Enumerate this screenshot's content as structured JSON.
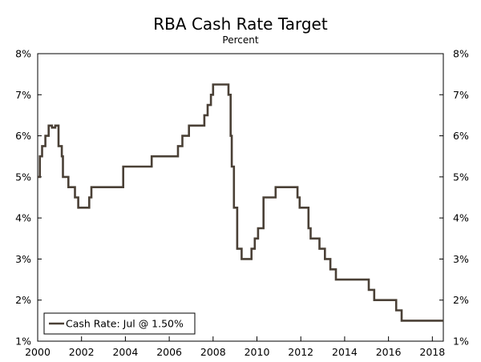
{
  "chart_data": {
    "type": "line",
    "title": "RBA Cash Rate Target",
    "subtitle": "Percent",
    "xlabel": "",
    "ylabel": "",
    "xlim": [
      2000,
      2018.5
    ],
    "ylim": [
      1,
      8
    ],
    "x_ticks": [
      2000,
      2002,
      2004,
      2006,
      2008,
      2010,
      2012,
      2014,
      2016,
      2018
    ],
    "x_tick_labels": [
      "2000",
      "2002",
      "2004",
      "2006",
      "2008",
      "2010",
      "2012",
      "2014",
      "2016",
      "2018"
    ],
    "y_ticks": [
      1,
      2,
      3,
      4,
      5,
      6,
      7,
      8
    ],
    "y_tick_labels_left": [
      "1%",
      "2%",
      "3%",
      "4%",
      "5%",
      "6%",
      "7%",
      "8%"
    ],
    "y_tick_labels_right": [
      "1%",
      "2%",
      "3%",
      "4%",
      "5%",
      "6%",
      "7%",
      "8%"
    ],
    "grid": false,
    "legend_position": "bottom-left",
    "line_color": "#4a4036",
    "series": [
      {
        "name": "Cash Rate: Jul @ 1.50%",
        "step": true,
        "x": [
          2000.0,
          2000.1,
          2000.2,
          2000.35,
          2000.5,
          2000.65,
          2000.8,
          2000.95,
          2001.1,
          2001.15,
          2001.25,
          2001.4,
          2001.7,
          2001.78,
          2001.85,
          2001.95,
          2002.1,
          2002.35,
          2002.45,
          2003.9,
          2005.2,
          2006.4,
          2006.6,
          2006.9,
          2007.6,
          2007.75,
          2007.9,
          2008.0,
          2008.7,
          2008.8,
          2008.85,
          2008.95,
          2009.1,
          2009.3,
          2009.75,
          2009.9,
          2010.05,
          2010.3,
          2010.85,
          2011.85,
          2011.95,
          2012.35,
          2012.45,
          2012.65,
          2012.85,
          2013.1,
          2013.35,
          2013.6,
          2015.1,
          2015.35,
          2016.35,
          2016.6,
          2018.5
        ],
        "values": [
          5.0,
          5.5,
          5.75,
          6.0,
          6.25,
          6.2,
          6.25,
          5.75,
          5.5,
          5.0,
          5.0,
          4.75,
          4.5,
          4.5,
          4.25,
          4.25,
          4.25,
          4.5,
          4.75,
          5.25,
          5.5,
          5.75,
          6.0,
          6.25,
          6.5,
          6.75,
          7.0,
          7.25,
          7.0,
          6.0,
          5.25,
          4.25,
          3.25,
          3.0,
          3.25,
          3.5,
          3.75,
          4.5,
          4.75,
          4.5,
          4.25,
          3.75,
          3.5,
          3.5,
          3.25,
          3.0,
          2.75,
          2.5,
          2.25,
          2.0,
          1.75,
          1.5,
          1.5
        ]
      }
    ]
  }
}
